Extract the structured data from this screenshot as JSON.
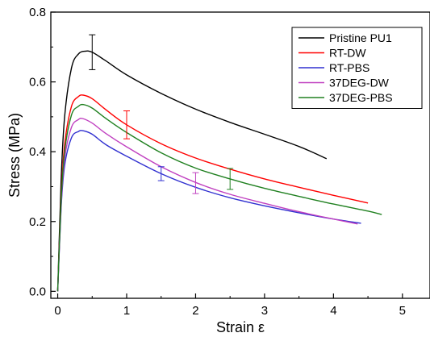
{
  "chart_data": {
    "type": "line",
    "xlabel": "Strain ε",
    "ylabel": "Stress (MPa)",
    "xlim": [
      -0.1,
      5.4
    ],
    "ylim": [
      -0.02,
      0.8
    ],
    "x_ticks": [
      0,
      1,
      2,
      3,
      4,
      5
    ],
    "y_ticks": [
      0.0,
      0.2,
      0.4,
      0.6,
      0.8
    ],
    "x_tick_labels": [
      "0",
      "1",
      "2",
      "3",
      "4",
      "5"
    ],
    "y_tick_labels": [
      "0.0",
      "0.2",
      "0.4",
      "0.6",
      "0.8"
    ],
    "grid": false,
    "legend_position": "top-right",
    "series": [
      {
        "name": "Pristine PU1",
        "color": "#000000",
        "x": [
          0.0,
          0.05,
          0.1,
          0.2,
          0.3,
          0.4,
          0.5,
          0.7,
          1.0,
          1.5,
          2.0,
          2.5,
          3.0,
          3.5,
          3.9
        ],
        "y": [
          0.0,
          0.32,
          0.5,
          0.64,
          0.68,
          0.688,
          0.685,
          0.66,
          0.62,
          0.567,
          0.522,
          0.484,
          0.45,
          0.415,
          0.38
        ],
        "error_bars": [
          {
            "x": 0.5,
            "y": 0.685,
            "err": 0.05
          }
        ]
      },
      {
        "name": "RT-DW",
        "color": "#ff0000",
        "x": [
          0.0,
          0.05,
          0.1,
          0.2,
          0.3,
          0.37,
          0.5,
          0.7,
          1.0,
          1.5,
          2.0,
          2.5,
          3.0,
          3.5,
          4.0,
          4.5
        ],
        "y": [
          0.0,
          0.27,
          0.42,
          0.53,
          0.558,
          0.562,
          0.552,
          0.52,
          0.477,
          0.423,
          0.382,
          0.35,
          0.322,
          0.298,
          0.275,
          0.253
        ],
        "error_bars": [
          {
            "x": 1.0,
            "y": 0.477,
            "err": 0.04
          }
        ]
      },
      {
        "name": "RT-PBS",
        "color": "#3030d0",
        "x": [
          0.0,
          0.05,
          0.1,
          0.2,
          0.3,
          0.37,
          0.5,
          0.7,
          1.0,
          1.5,
          2.0,
          2.5,
          3.0,
          3.5,
          4.0,
          4.4
        ],
        "y": [
          0.0,
          0.24,
          0.36,
          0.44,
          0.458,
          0.46,
          0.45,
          0.42,
          0.387,
          0.337,
          0.298,
          0.268,
          0.245,
          0.225,
          0.207,
          0.195
        ],
        "error_bars": [
          {
            "x": 1.5,
            "y": 0.337,
            "err": 0.02
          }
        ]
      },
      {
        "name": "37DEG-DW",
        "color": "#c040c0",
        "x": [
          0.0,
          0.05,
          0.1,
          0.2,
          0.3,
          0.36,
          0.5,
          0.7,
          1.0,
          1.5,
          2.0,
          2.5,
          3.0,
          3.5,
          4.0,
          4.35
        ],
        "y": [
          0.0,
          0.25,
          0.38,
          0.47,
          0.492,
          0.495,
          0.482,
          0.452,
          0.414,
          0.357,
          0.312,
          0.278,
          0.252,
          0.228,
          0.207,
          0.193
        ],
        "error_bars": [
          {
            "x": 2.0,
            "y": 0.31,
            "err": 0.03
          }
        ]
      },
      {
        "name": "37DEG-PBS",
        "color": "#208020",
        "x": [
          0.0,
          0.05,
          0.1,
          0.2,
          0.3,
          0.37,
          0.5,
          0.7,
          1.0,
          1.5,
          2.0,
          2.5,
          3.0,
          3.5,
          4.0,
          4.5,
          4.7
        ],
        "y": [
          0.0,
          0.26,
          0.4,
          0.505,
          0.53,
          0.535,
          0.525,
          0.495,
          0.455,
          0.397,
          0.353,
          0.322,
          0.295,
          0.272,
          0.25,
          0.23,
          0.22
        ],
        "error_bars": [
          {
            "x": 2.5,
            "y": 0.322,
            "err": 0.03
          }
        ]
      }
    ]
  }
}
